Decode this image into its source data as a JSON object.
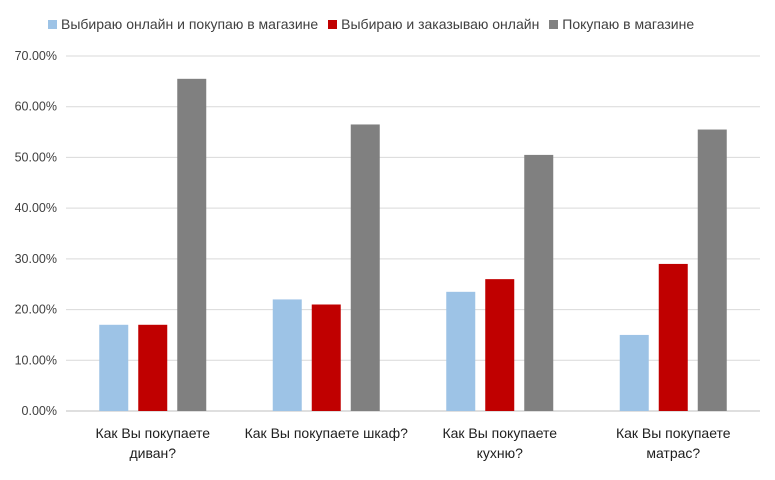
{
  "chart_data": {
    "type": "bar",
    "categories": [
      [
        "Как Вы покупаете",
        "диван?"
      ],
      [
        "Как Вы покупаете шкаф?"
      ],
      [
        "Как Вы покупаете",
        "кухню?"
      ],
      [
        "Как Вы покупаете",
        "матрас?"
      ]
    ],
    "series": [
      {
        "name": "Выбираю онлайн и покупаю в магазине",
        "color": "#9DC3E6",
        "values": [
          17.0,
          22.0,
          23.5,
          15.0
        ]
      },
      {
        "name": "Выбираю и заказываю онлайн",
        "color": "#C00000",
        "values": [
          17.0,
          21.0,
          26.0,
          29.0
        ]
      },
      {
        "name": "Покупаю в магазине",
        "color": "#808080",
        "values": [
          65.5,
          56.5,
          50.5,
          55.5
        ]
      }
    ],
    "yticks": [
      "0.00%",
      "10.00%",
      "20.00%",
      "30.00%",
      "40.00%",
      "50.00%",
      "60.00%",
      "70.00%"
    ],
    "ylim": [
      0,
      70
    ],
    "grid": true,
    "legend_position": "top-left"
  }
}
